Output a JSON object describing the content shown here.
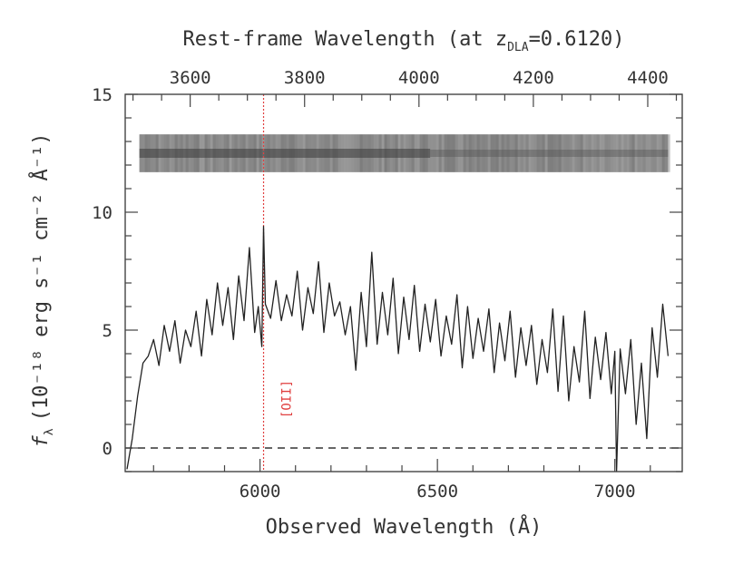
{
  "chart_data": {
    "type": "line",
    "title": "",
    "top_axis": {
      "label_prefix": "Rest-frame Wavelength (at z",
      "label_subscript": "DLA",
      "label_suffix": "=0.6120)",
      "ticks": [
        "3600",
        "3800",
        "4000",
        "4200",
        "4400"
      ],
      "tick_values": [
        3600,
        3800,
        4000,
        4200,
        4400
      ],
      "redshift": 0.612
    },
    "xlabel": "Observed Wavelength (Å)",
    "ylabel_symbol": "f",
    "ylabel_symbol_subscript": "λ",
    "ylabel_units": "(10⁻¹⁸ erg s⁻¹ cm⁻² Å⁻¹)",
    "xlim": [
      5620,
      7190
    ],
    "ylim": [
      -1,
      15
    ],
    "x_ticks": [
      "6000",
      "6500",
      "7000"
    ],
    "x_tick_values": [
      6000,
      6500,
      7000
    ],
    "y_ticks": [
      "0",
      "5",
      "10",
      "15"
    ],
    "y_tick_values": [
      0,
      5,
      10,
      15
    ],
    "zero_line": {
      "y": 0,
      "style": "dashed"
    },
    "marker_line": {
      "x": 6010,
      "label": "[OII]",
      "color": "#e04040"
    },
    "spectrum_image": {
      "x_start": 5660,
      "x_end": 7150,
      "y_low": 11.7,
      "y_high": 13.3
    },
    "series": [
      {
        "color": "#222222",
        "x": [
          5625,
          5640,
          5655,
          5670,
          5685,
          5700,
          5715,
          5730,
          5745,
          5760,
          5775,
          5790,
          5805,
          5820,
          5835,
          5850,
          5865,
          5880,
          5895,
          5910,
          5925,
          5940,
          5955,
          5970,
          5985,
          5995,
          6005,
          6010,
          6015,
          6030,
          6045,
          6060,
          6075,
          6090,
          6105,
          6120,
          6135,
          6150,
          6165,
          6180,
          6195,
          6210,
          6225,
          6240,
          6255,
          6270,
          6285,
          6300,
          6315,
          6330,
          6345,
          6360,
          6375,
          6390,
          6405,
          6420,
          6435,
          6450,
          6465,
          6480,
          6495,
          6510,
          6525,
          6540,
          6555,
          6570,
          6585,
          6600,
          6615,
          6630,
          6645,
          6660,
          6675,
          6690,
          6705,
          6720,
          6735,
          6750,
          6765,
          6780,
          6795,
          6810,
          6825,
          6840,
          6855,
          6870,
          6885,
          6900,
          6915,
          6930,
          6945,
          6960,
          6975,
          6990,
          7000,
          7005,
          7015,
          7030,
          7045,
          7060,
          7075,
          7090,
          7105,
          7120,
          7135,
          7150
        ],
        "y": [
          -0.9,
          0.4,
          2.2,
          3.6,
          3.9,
          4.6,
          3.5,
          5.2,
          4.1,
          5.4,
          3.6,
          5.0,
          4.3,
          5.8,
          3.9,
          6.3,
          4.8,
          7.0,
          5.2,
          6.8,
          4.6,
          7.3,
          5.4,
          8.5,
          4.9,
          6.0,
          4.3,
          9.4,
          6.1,
          5.5,
          7.1,
          5.4,
          6.5,
          5.6,
          7.5,
          5.0,
          6.8,
          5.7,
          7.9,
          4.9,
          7.0,
          5.6,
          6.2,
          4.8,
          6.0,
          3.3,
          6.6,
          4.3,
          8.3,
          4.4,
          6.6,
          4.8,
          7.2,
          4.0,
          6.4,
          4.6,
          6.9,
          4.1,
          6.1,
          4.5,
          6.3,
          3.9,
          5.6,
          4.4,
          6.5,
          3.4,
          6.0,
          3.8,
          5.5,
          4.1,
          5.9,
          3.2,
          5.3,
          3.7,
          5.8,
          3.0,
          5.1,
          3.5,
          5.2,
          2.7,
          4.6,
          3.2,
          5.9,
          2.4,
          5.6,
          2.0,
          4.3,
          2.8,
          5.8,
          2.1,
          4.7,
          2.9,
          4.9,
          2.3,
          4.1,
          -1.0,
          4.2,
          2.3,
          4.6,
          1.0,
          3.6,
          0.4,
          5.1,
          3.0,
          6.1,
          3.9
        ]
      }
    ],
    "grid": false,
    "legend": "none"
  }
}
